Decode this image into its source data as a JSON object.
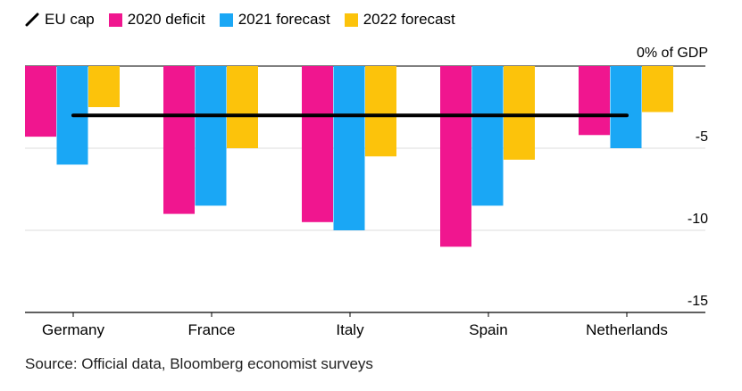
{
  "chart_data": {
    "type": "bar",
    "unit_label": "0% of GDP",
    "categories": [
      "Germany",
      "France",
      "Italy",
      "Spain",
      "Netherlands"
    ],
    "series": [
      {
        "name": "2020 deficit",
        "color": "#f0168f",
        "values": [
          -4.3,
          -9.0,
          -9.5,
          -11.0,
          -4.2
        ]
      },
      {
        "name": "2021 forecast",
        "color": "#1aa7f5",
        "values": [
          -6.0,
          -8.5,
          -10.0,
          -8.5,
          -5.0
        ]
      },
      {
        "name": "2022 forecast",
        "color": "#fcc30b",
        "values": [
          -2.5,
          -5.0,
          -5.5,
          -5.7,
          -2.8
        ]
      }
    ],
    "reference_line": {
      "name": "EU cap",
      "value": -3,
      "color": "#000000"
    },
    "y_ticks": [
      -5,
      -10,
      -15
    ],
    "ylim": [
      -15,
      0
    ],
    "grid": true
  },
  "legend": {
    "items": [
      {
        "label": "EU cap",
        "icon": "line-icon"
      },
      {
        "label": "2020 deficit",
        "color": "#f0168f"
      },
      {
        "label": "2021 forecast",
        "color": "#1aa7f5"
      },
      {
        "label": "2022 forecast",
        "color": "#fcc30b"
      }
    ]
  },
  "source": "Source: Official data, Bloomberg economist surveys"
}
